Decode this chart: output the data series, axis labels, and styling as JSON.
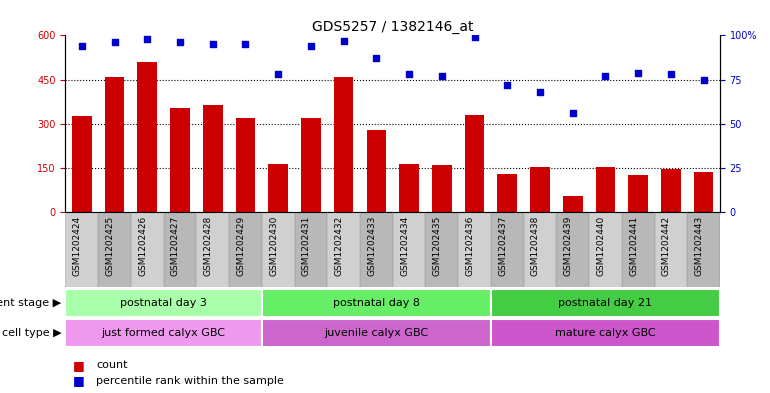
{
  "title": "GDS5257 / 1382146_at",
  "samples": [
    "GSM1202424",
    "GSM1202425",
    "GSM1202426",
    "GSM1202427",
    "GSM1202428",
    "GSM1202429",
    "GSM1202430",
    "GSM1202431",
    "GSM1202432",
    "GSM1202433",
    "GSM1202434",
    "GSM1202435",
    "GSM1202436",
    "GSM1202437",
    "GSM1202438",
    "GSM1202439",
    "GSM1202440",
    "GSM1202441",
    "GSM1202442",
    "GSM1202443"
  ],
  "counts": [
    325,
    458,
    510,
    355,
    365,
    320,
    165,
    320,
    460,
    280,
    165,
    160,
    330,
    130,
    155,
    55,
    155,
    125,
    148,
    135
  ],
  "percentiles": [
    94,
    96,
    98,
    96,
    95,
    95,
    78,
    94,
    97,
    87,
    78,
    77,
    99,
    72,
    68,
    56,
    77,
    79,
    78,
    75
  ],
  "bar_color": "#cc0000",
  "dot_color": "#0000cc",
  "left_yticks": [
    0,
    150,
    300,
    450,
    600
  ],
  "left_ylim": [
    0,
    600
  ],
  "right_yticks": [
    0,
    25,
    50,
    75,
    100
  ],
  "right_ylim": [
    0,
    100
  ],
  "right_ylabel_color": "#0000cc",
  "left_ylabel_color": "#cc0000",
  "grid_color": "black",
  "groups": [
    {
      "label": "postnatal day 3",
      "start": 0,
      "end": 5,
      "color": "#aaffaa"
    },
    {
      "label": "postnatal day 8",
      "start": 6,
      "end": 12,
      "color": "#66ee66"
    },
    {
      "label": "postnatal day 21",
      "start": 13,
      "end": 19,
      "color": "#44cc44"
    }
  ],
  "cell_types": [
    {
      "label": "just formed calyx GBC",
      "start": 0,
      "end": 5,
      "color": "#ee99ee"
    },
    {
      "label": "juvenile calyx GBC",
      "start": 6,
      "end": 12,
      "color": "#cc66cc"
    },
    {
      "label": "mature calyx GBC",
      "start": 13,
      "end": 19,
      "color": "#cc55cc"
    }
  ],
  "dev_stage_label": "development stage",
  "cell_type_label": "cell type",
  "legend_count_label": "count",
  "legend_pct_label": "percentile rank within the sample",
  "bar_width": 0.6,
  "tick_fontsize": 7,
  "annot_fontsize": 8
}
